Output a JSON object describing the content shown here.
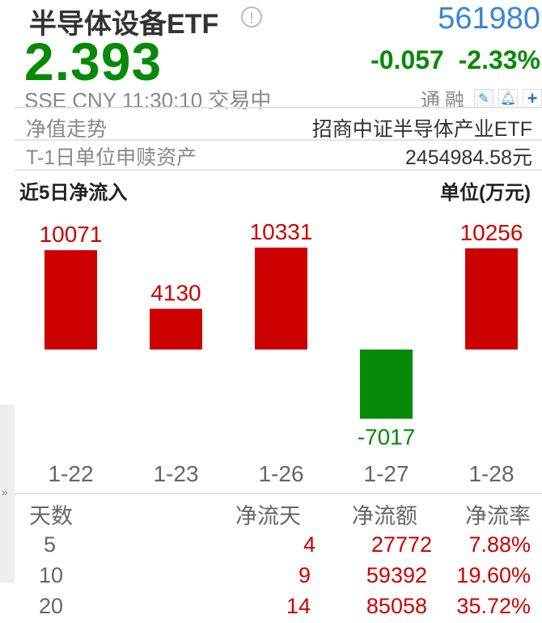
{
  "header": {
    "name": "半导体设备ETF",
    "info_icon": "info-circle-icon",
    "code": "561980",
    "price": "2.393",
    "change": "-0.057",
    "change_pct": "-2.33%",
    "meta": "SSE  CNY  11:30:10  交易中",
    "tags": [
      "通",
      "融"
    ],
    "tool_icons": [
      "pencil-icon",
      "bell-icon",
      "plus-icon"
    ]
  },
  "info_rows": [
    {
      "label": "净值走势",
      "value": "招商中证半导体产业ETF"
    },
    {
      "label": "T-1日单位申赎资产",
      "value": "2454984.58元"
    }
  ],
  "section": {
    "title": "近5日净流入",
    "unit": "单位(万元)"
  },
  "colors": {
    "up": "#cc0000",
    "down": "#078a07",
    "code": "#3a86d6"
  },
  "chart_data": {
    "type": "bar",
    "categories": [
      "1-22",
      "1-23",
      "1-26",
      "1-27",
      "1-28"
    ],
    "values": [
      10071,
      4130,
      10331,
      -7017,
      10256
    ],
    "ylabel": "单位(万元)"
  },
  "table": {
    "headers": [
      "天数",
      "净流天",
      "净流额",
      "净流率"
    ],
    "rows": [
      [
        "5",
        "4",
        "27772",
        "7.88%"
      ],
      [
        "10",
        "9",
        "59392",
        "19.60%"
      ],
      [
        "20",
        "14",
        "85058",
        "35.72%"
      ]
    ]
  }
}
